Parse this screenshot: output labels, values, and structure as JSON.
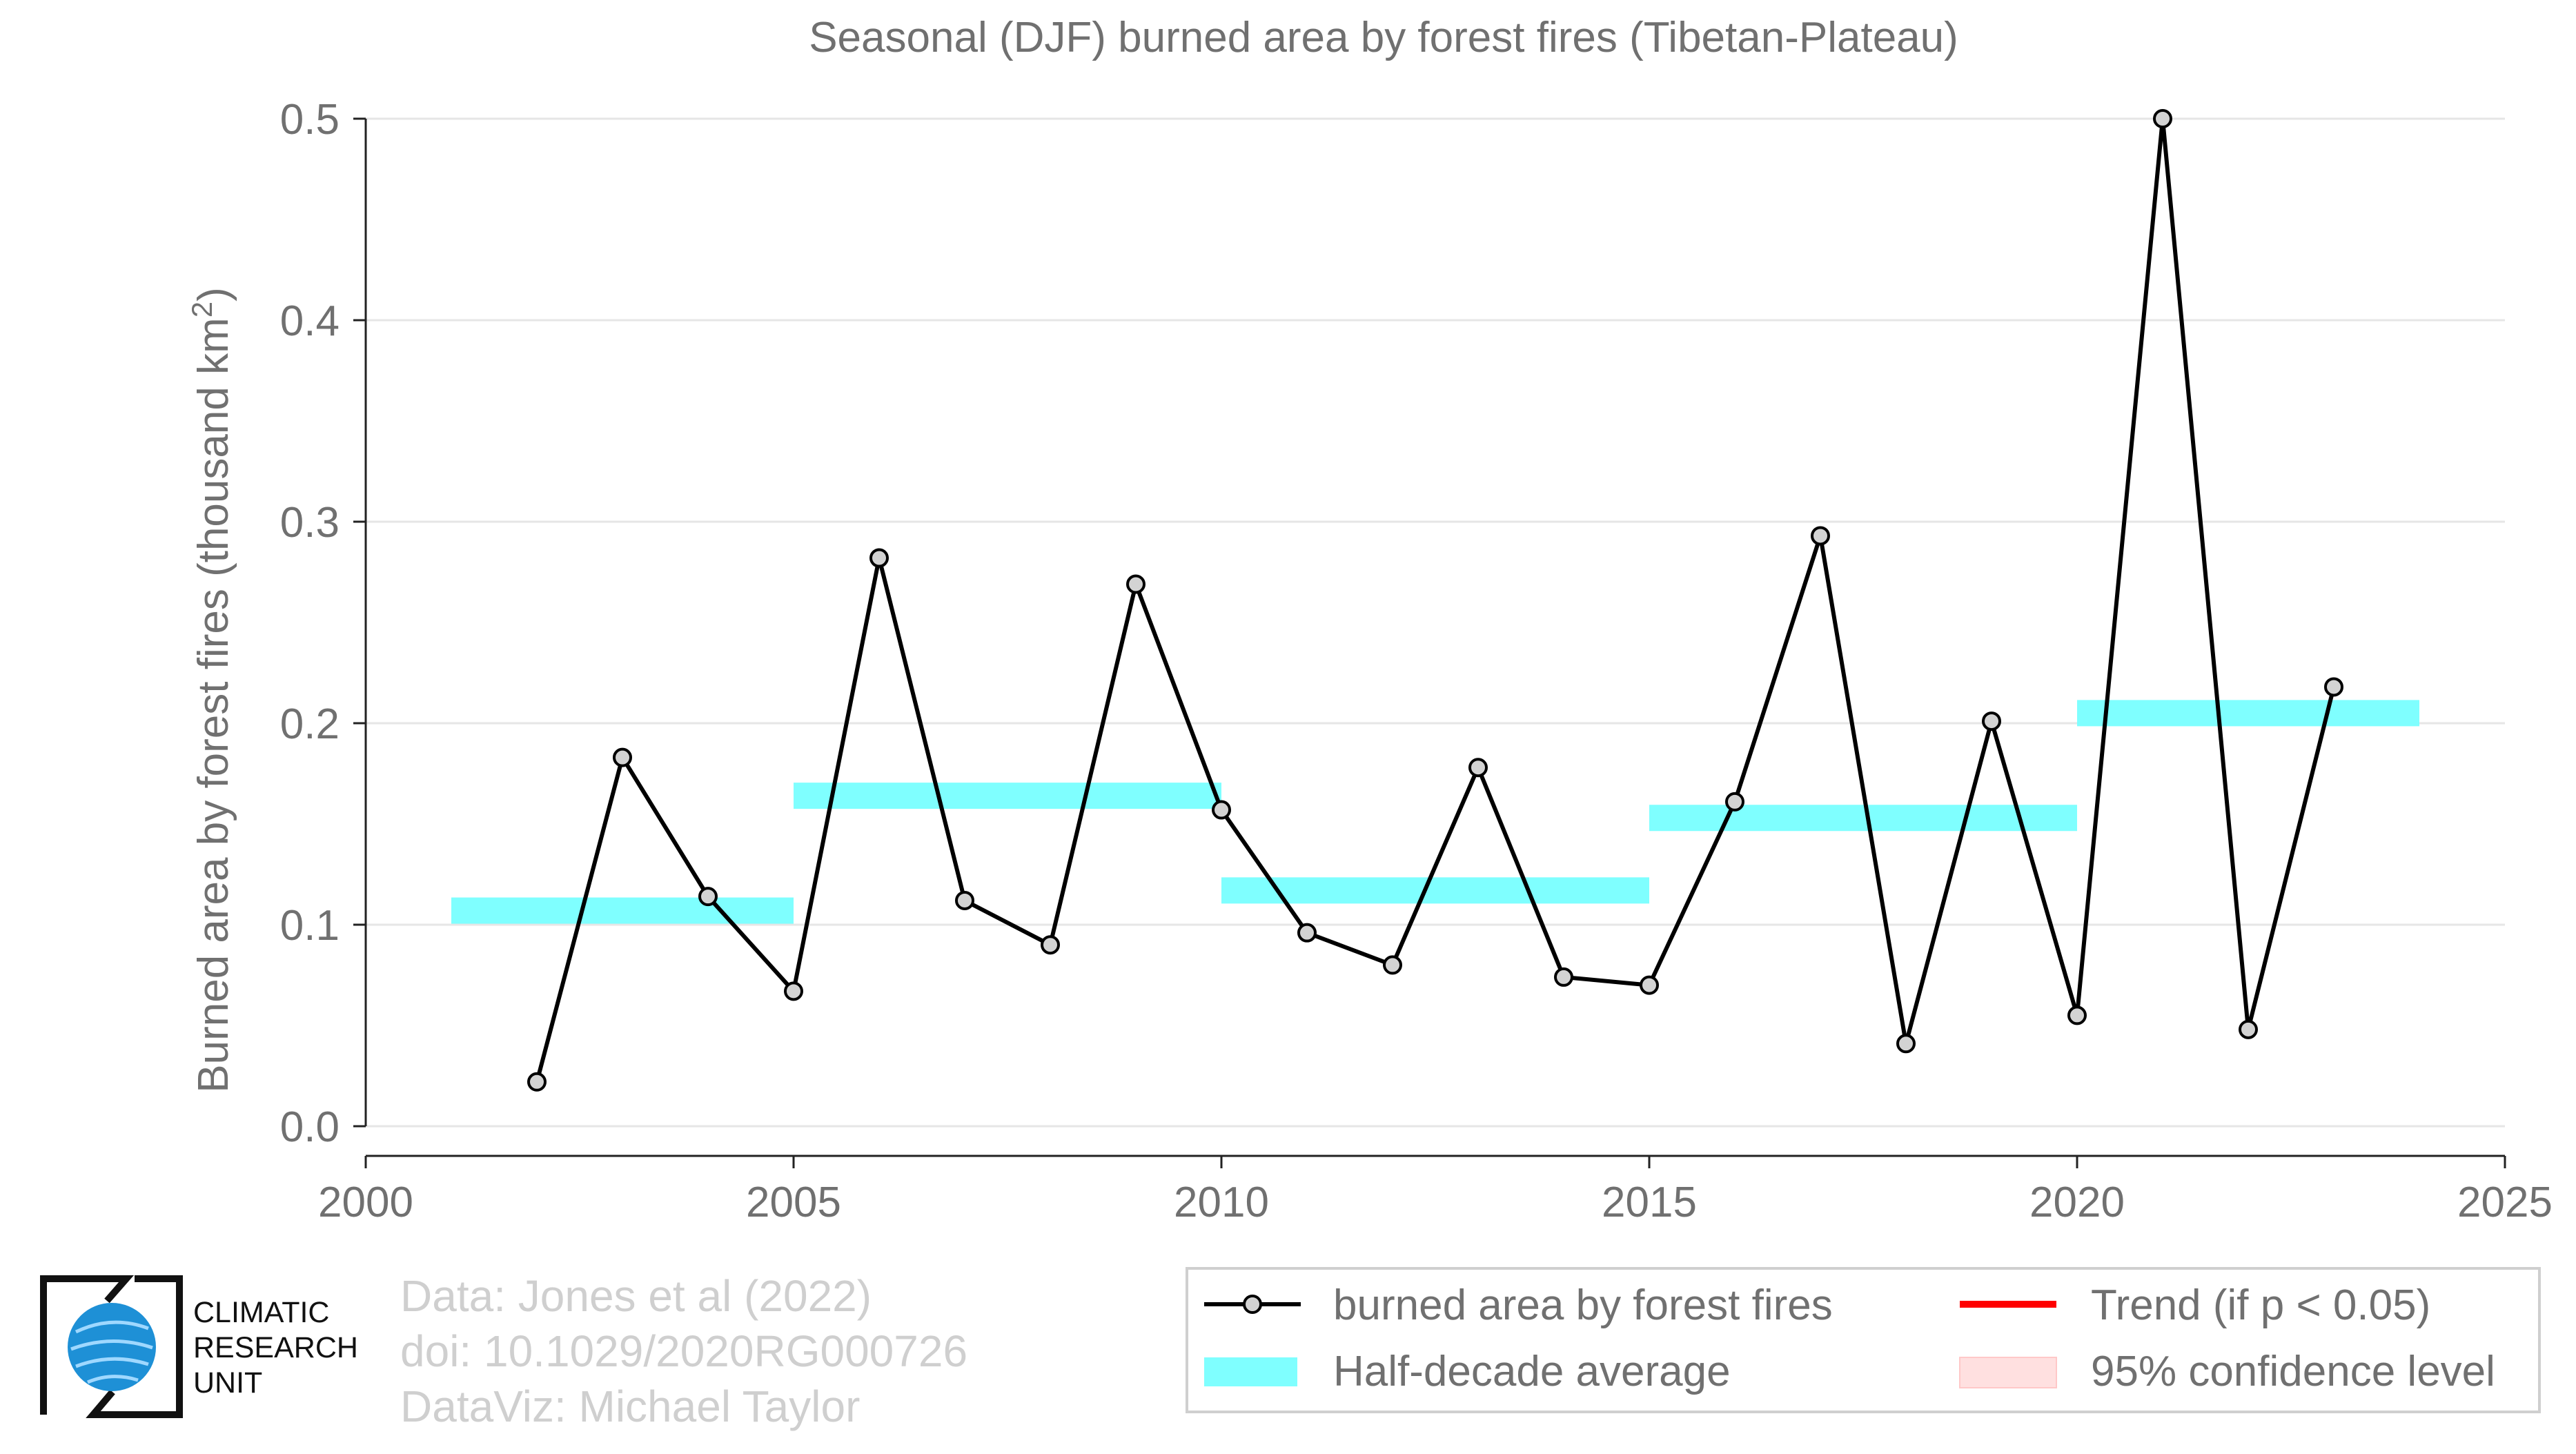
{
  "chart_data": {
    "type": "line",
    "title": "Seasonal (DJF) burned area by forest fires (Tibetan-Plateau)",
    "ylabel": "Burned area by forest fires (thousand km",
    "ylabel_sup": "2",
    "ylabel_end": ")",
    "xlim": [
      2000,
      2025
    ],
    "ylim": [
      0.0,
      0.5
    ],
    "xticks": [
      2000,
      2005,
      2010,
      2015,
      2020,
      2025
    ],
    "yticks": [
      0.0,
      0.1,
      0.2,
      0.3,
      0.4,
      0.5
    ],
    "ytick_labels": [
      "0.0",
      "0.1",
      "0.2",
      "0.3",
      "0.4",
      "0.5"
    ],
    "grid": "horizontal",
    "series": [
      {
        "name": "burned area by forest fires",
        "color": "#000000",
        "marker_fill": "#d3d3d3",
        "x": [
          2002,
          2003,
          2004,
          2005,
          2006,
          2007,
          2008,
          2009,
          2010,
          2011,
          2012,
          2013,
          2014,
          2015,
          2016,
          2017,
          2018,
          2019,
          2020,
          2021,
          2022,
          2023
        ],
        "y": [
          0.022,
          0.183,
          0.114,
          0.067,
          0.282,
          0.112,
          0.09,
          0.269,
          0.157,
          0.096,
          0.08,
          0.178,
          0.074,
          0.07,
          0.161,
          0.293,
          0.041,
          0.201,
          0.055,
          0.5,
          0.048,
          0.218
        ]
      }
    ],
    "half_decade_average": {
      "name": "Half-decade average",
      "color": "#7fffff",
      "segments": [
        {
          "x0": 2001,
          "x1": 2005,
          "y": 0.107
        },
        {
          "x0": 2005,
          "x1": 2010,
          "y": 0.164
        },
        {
          "x0": 2010,
          "x1": 2015,
          "y": 0.117
        },
        {
          "x0": 2015,
          "x1": 2020,
          "y": 0.153
        },
        {
          "x0": 2020,
          "x1": 2024,
          "y": 0.205
        }
      ]
    },
    "legend": {
      "placement": "bottom-right",
      "entries": [
        {
          "label": "burned area by forest fires",
          "type": "line-marker",
          "color": "#000000"
        },
        {
          "label": "Trend (if p < 0.05)",
          "type": "line",
          "color": "#ff0000"
        },
        {
          "label": "Half-decade average",
          "type": "band",
          "color": "#7fffff"
        },
        {
          "label": "95% confidence level",
          "type": "band",
          "color": "#ffe0e0"
        }
      ]
    }
  },
  "credits": {
    "line1": "Data: Jones et al (2022)",
    "line2": "doi: 10.1029/2020RG000726",
    "line3": "DataViz: Michael Taylor"
  },
  "logo": {
    "line1": "CLIMATIC",
    "line2": "RESEARCH",
    "line3": "UNIT",
    "globe_color": "#1e90d6"
  }
}
